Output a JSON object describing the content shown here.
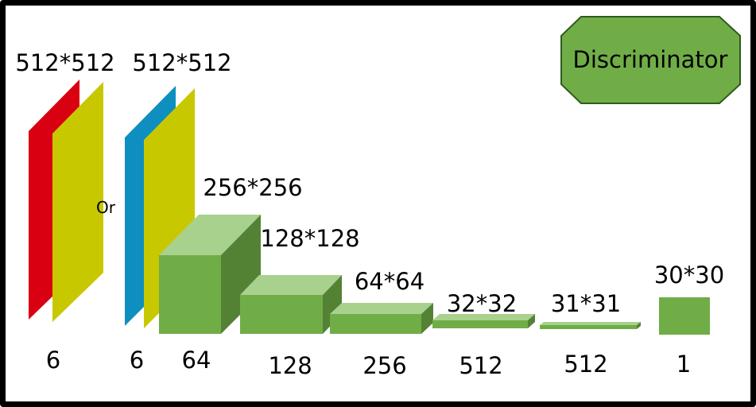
{
  "title": "Discriminator",
  "inputs": [
    {
      "size_label": "512*512",
      "channels": "6",
      "color_back": "#d90011",
      "color_front": "#c8c800"
    },
    {
      "size_label": "512*512",
      "channels": "6",
      "color_back": "#0f8fc0",
      "color_front": "#c8c800"
    }
  ],
  "or_label": "Or",
  "layers": [
    {
      "size_label": "256*256",
      "channels": "64"
    },
    {
      "size_label": "128*128",
      "channels": "128"
    },
    {
      "size_label": "64*64",
      "channels": "256"
    },
    {
      "size_label": "32*32",
      "channels": "512"
    },
    {
      "size_label": "31*31",
      "channels": "512"
    },
    {
      "size_label": "30*30",
      "channels": "1"
    }
  ],
  "colors": {
    "block_front": "#70ad47",
    "block_top": "#a9d18e",
    "block_side": "#548235",
    "title_fill": "#70ad47",
    "title_stroke": "#2e5c1e"
  }
}
